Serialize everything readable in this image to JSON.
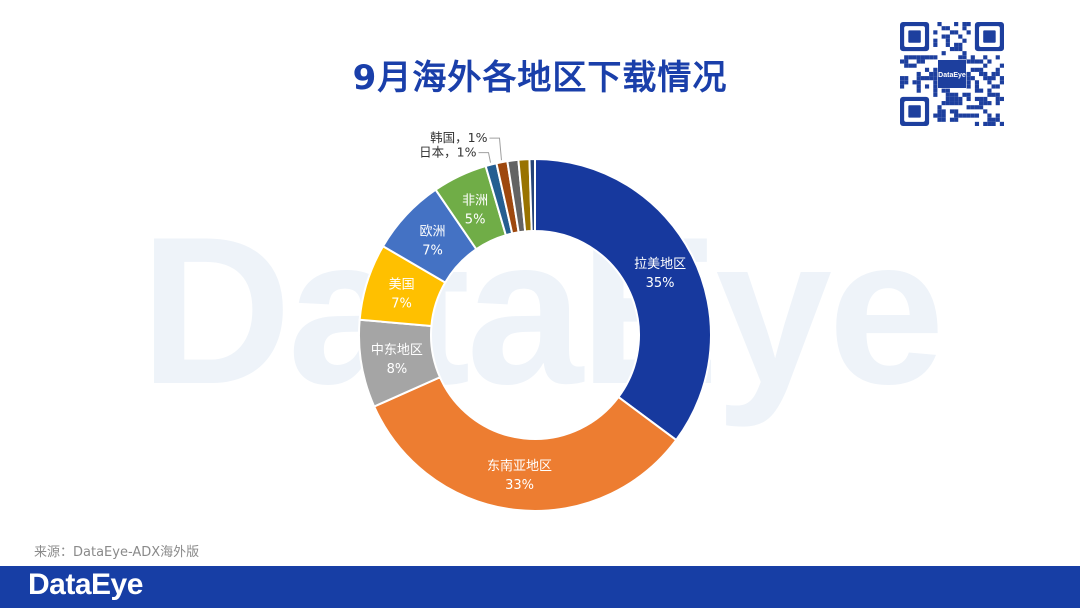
{
  "page": {
    "title": "9月海外各地区下载情况",
    "source": "来源：DataEye-ADX海外版",
    "footer_logo": "DataEye",
    "watermark": "DataEye",
    "qr_center_label": "DataEye"
  },
  "colors": {
    "brand_blue": "#173ea5",
    "title_blue": "#1a3faa"
  },
  "chart_data": {
    "type": "pie",
    "donut": true,
    "title": "",
    "series": [
      {
        "name": "拉美地区",
        "value": 35,
        "label": "35%",
        "color": "#17399e",
        "label_position": "inside"
      },
      {
        "name": "东南亚地区",
        "value": 33,
        "label": "33%",
        "color": "#ed7d31",
        "label_position": "inside"
      },
      {
        "name": "中东地区",
        "value": 8,
        "label": "8%",
        "color": "#a5a5a5",
        "label_position": "inside"
      },
      {
        "name": "美国",
        "value": 7,
        "label": "7%",
        "color": "#ffc000",
        "label_position": "inside"
      },
      {
        "name": "欧洲",
        "value": 7,
        "label": "7%",
        "color": "#4472c4",
        "label_position": "inside"
      },
      {
        "name": "非洲",
        "value": 5,
        "label": "5%",
        "color": "#70ad47",
        "label_position": "inside"
      },
      {
        "name": "日本",
        "value": 1,
        "label": "1%",
        "color": "#255e91",
        "label_position": "outside"
      },
      {
        "name": "韩国",
        "value": 1,
        "label": "1%",
        "color": "#9e480e",
        "label_position": "outside"
      },
      {
        "name": "",
        "value": 1,
        "label": "",
        "color": "#636363"
      },
      {
        "name": "",
        "value": 1,
        "label": "",
        "color": "#997300"
      },
      {
        "name": "",
        "value": 0.5,
        "label": "",
        "color": "#264478"
      }
    ]
  }
}
